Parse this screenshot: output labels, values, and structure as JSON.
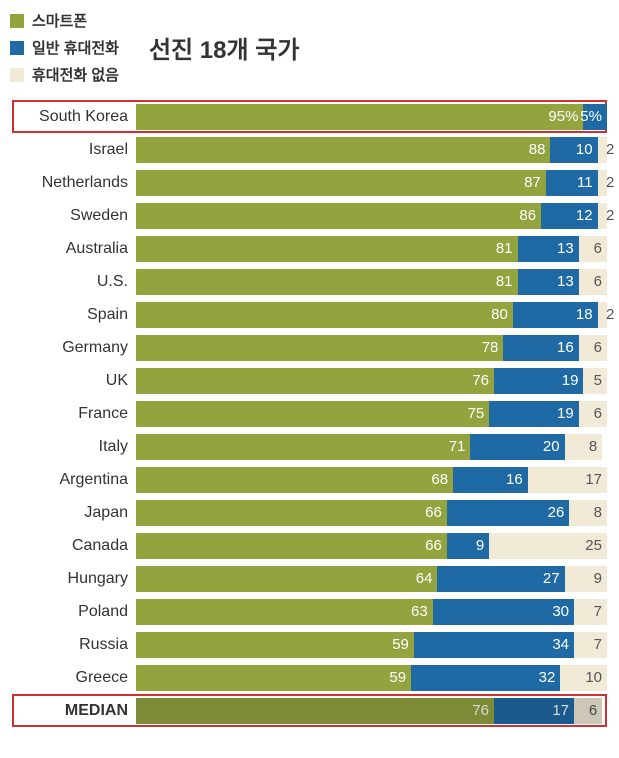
{
  "title": "선진 18개 국가",
  "legend": [
    {
      "label": "스마트폰",
      "color": "#93a43f"
    },
    {
      "label": "일반 휴대전화",
      "color": "#1f6aa5"
    },
    {
      "label": "휴대전화 없음",
      "color": "#f0ead6"
    }
  ],
  "chart": {
    "type": "stacked-bar",
    "unit": "%",
    "max": 100,
    "colors": {
      "smartphone": "#93a43f",
      "regular": "#1f6aa5",
      "none": "#f0ead6",
      "highlight_border": "#d03030"
    },
    "fontsize_label": 16,
    "fontsize_value": 15,
    "series_keys": [
      "smartphone",
      "regular",
      "none"
    ],
    "rows": [
      {
        "country": "South Korea",
        "smartphone": 95,
        "regular": 5,
        "none": 0,
        "highlight": true,
        "show_pct": true
      },
      {
        "country": "Israel",
        "smartphone": 88,
        "regular": 10,
        "none": 2
      },
      {
        "country": "Netherlands",
        "smartphone": 87,
        "regular": 11,
        "none": 2
      },
      {
        "country": "Sweden",
        "smartphone": 86,
        "regular": 12,
        "none": 2
      },
      {
        "country": "Australia",
        "smartphone": 81,
        "regular": 13,
        "none": 6
      },
      {
        "country": "U.S.",
        "smartphone": 81,
        "regular": 13,
        "none": 6
      },
      {
        "country": "Spain",
        "smartphone": 80,
        "regular": 18,
        "none": 2
      },
      {
        "country": "Germany",
        "smartphone": 78,
        "regular": 16,
        "none": 6
      },
      {
        "country": "UK",
        "smartphone": 76,
        "regular": 19,
        "none": 5
      },
      {
        "country": "France",
        "smartphone": 75,
        "regular": 19,
        "none": 6
      },
      {
        "country": "Italy",
        "smartphone": 71,
        "regular": 20,
        "none": 8
      },
      {
        "country": "Argentina",
        "smartphone": 68,
        "regular": 16,
        "none": 17
      },
      {
        "country": "Japan",
        "smartphone": 66,
        "regular": 26,
        "none": 8
      },
      {
        "country": "Canada",
        "smartphone": 66,
        "regular": 9,
        "none": 25
      },
      {
        "country": "Hungary",
        "smartphone": 64,
        "regular": 27,
        "none": 9
      },
      {
        "country": "Poland",
        "smartphone": 63,
        "regular": 30,
        "none": 7
      },
      {
        "country": "Russia",
        "smartphone": 59,
        "regular": 34,
        "none": 7
      },
      {
        "country": "Greece",
        "smartphone": 59,
        "regular": 32,
        "none": 10
      },
      {
        "country": "MEDIAN",
        "smartphone": 76,
        "regular": 17,
        "none": 6,
        "highlight": true,
        "median": true
      }
    ]
  }
}
